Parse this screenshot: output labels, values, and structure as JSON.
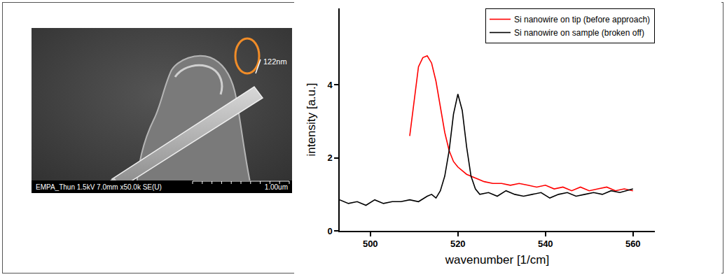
{
  "chart_data": {
    "type": "line",
    "xlabel": "wavenumber [1/cm]",
    "ylabel": "intensity [a.u.]",
    "xlim": [
      493,
      565
    ],
    "xticks": [
      500,
      520,
      540,
      560
    ],
    "ylim": [
      0,
      6.1
    ],
    "yticks": [
      0,
      2,
      4
    ],
    "grid": false,
    "legend": "upper right",
    "series": [
      {
        "name": "Si nanowire on tip (before approach)",
        "color": "#ff0000",
        "x": [
          509,
          510,
          511,
          512,
          513,
          514,
          515,
          516,
          517,
          518,
          519,
          520,
          521,
          522,
          524,
          526,
          528,
          530,
          532,
          534,
          536,
          538,
          540,
          542,
          544,
          546,
          548,
          550,
          552,
          554,
          556,
          558,
          560
        ],
        "values": [
          2.6,
          3.6,
          4.5,
          4.75,
          4.8,
          4.6,
          4.1,
          3.4,
          2.7,
          2.2,
          1.9,
          1.75,
          1.65,
          1.55,
          1.45,
          1.35,
          1.3,
          1.3,
          1.25,
          1.3,
          1.25,
          1.2,
          1.25,
          1.15,
          1.2,
          1.1,
          1.2,
          1.1,
          1.15,
          1.2,
          1.1,
          1.15,
          1.1
        ]
      },
      {
        "name": "Si nanowire on sample (broken off)",
        "color": "#000000",
        "x": [
          493,
          495,
          497,
          499,
          501,
          503,
          505,
          507,
          509,
          511,
          513,
          514,
          515,
          516,
          517,
          518,
          519,
          520,
          521,
          522,
          523,
          524,
          525,
          527,
          529,
          531,
          533,
          535,
          537,
          539,
          541,
          543,
          545,
          547,
          549,
          551,
          553,
          555,
          557,
          560
        ],
        "values": [
          0.85,
          0.75,
          0.8,
          0.7,
          0.85,
          0.75,
          0.8,
          0.8,
          0.85,
          0.8,
          0.95,
          1.0,
          0.9,
          1.1,
          1.5,
          2.2,
          3.2,
          3.75,
          3.3,
          2.3,
          1.5,
          1.15,
          1.0,
          1.05,
          0.95,
          1.1,
          1.0,
          0.95,
          1.0,
          1.05,
          0.9,
          1.0,
          1.05,
          0.95,
          1.0,
          1.05,
          1.0,
          1.1,
          1.05,
          1.15
        ]
      }
    ]
  },
  "image": {
    "caption": "EMPA_Thun 1.5kV 7.0mm x50.0k SE(U)",
    "scale_bar": "1.00um",
    "measurement": "122nm"
  }
}
